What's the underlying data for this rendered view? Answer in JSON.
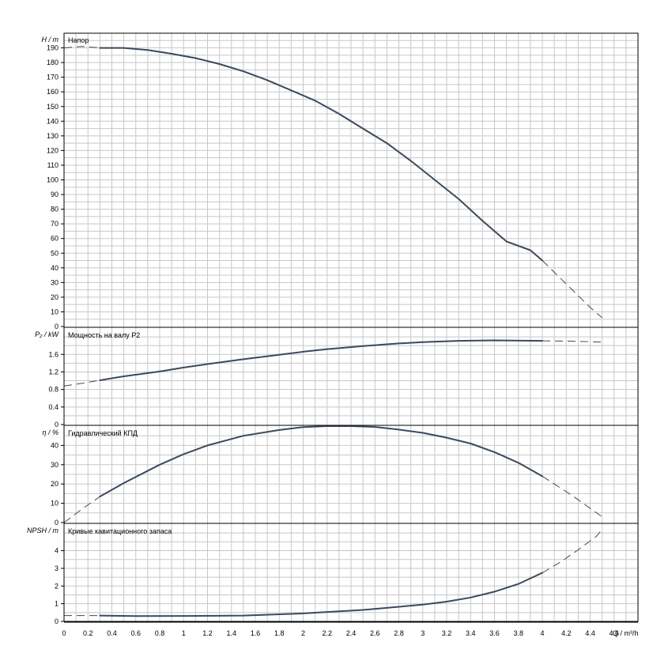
{
  "chart_data": {
    "type": "line",
    "x_axis": {
      "label": "Q / m³/h",
      "range": [
        0,
        4.8
      ],
      "ticks": [
        0,
        0.2,
        0.4,
        0.6,
        0.8,
        1,
        1.2,
        1.4,
        1.6,
        1.8,
        2,
        2.2,
        2.4,
        2.6,
        2.8,
        3,
        3.2,
        3.4,
        3.6,
        3.8,
        4,
        4.2,
        4.4,
        4.6
      ]
    },
    "grid": true,
    "panels": [
      {
        "id": "head",
        "title": "Напор",
        "ylabel": "H / m",
        "ylim": [
          0,
          200
        ],
        "yticks": [
          0,
          10,
          20,
          30,
          40,
          50,
          60,
          70,
          80,
          90,
          100,
          110,
          120,
          130,
          140,
          150,
          160,
          170,
          180,
          190
        ],
        "solid": {
          "x": [
            0.3,
            0.5,
            0.7,
            0.9,
            1.1,
            1.3,
            1.5,
            1.7,
            1.9,
            2.1,
            2.3,
            2.5,
            2.7,
            2.9,
            3.1,
            3.3,
            3.5,
            3.7,
            3.9,
            4.0
          ],
          "y": [
            190,
            190,
            188.5,
            186,
            183,
            179,
            174,
            168,
            161,
            154,
            145,
            135,
            125,
            113,
            100,
            87,
            72,
            58,
            52,
            45
          ]
        },
        "dashed": [
          {
            "x": [
              0,
              0.15,
              0.3
            ],
            "y": [
              190,
              191,
              190
            ]
          },
          {
            "x": [
              4.0,
              4.1,
              4.2,
              4.3,
              4.4,
              4.5
            ],
            "y": [
              45,
              37,
              29,
              21,
              13,
              6
            ]
          }
        ]
      },
      {
        "id": "power",
        "title": "Мощность на валу P2",
        "ylabel": "P₂ / kW",
        "ylim": [
          0,
          2.2
        ],
        "yticks": [
          0,
          0.4,
          0.8,
          1.2,
          1.6
        ],
        "solid": {
          "x": [
            0.3,
            0.5,
            0.8,
            1.0,
            1.2,
            1.5,
            1.8,
            2.0,
            2.2,
            2.5,
            2.8,
            3.0,
            3.3,
            3.6,
            4.0
          ],
          "y": [
            1.01,
            1.1,
            1.21,
            1.3,
            1.38,
            1.49,
            1.59,
            1.66,
            1.72,
            1.79,
            1.85,
            1.88,
            1.91,
            1.92,
            1.91
          ]
        },
        "dashed": [
          {
            "x": [
              0,
              0.15,
              0.3
            ],
            "y": [
              0.88,
              0.94,
              1.01
            ]
          },
          {
            "x": [
              4.0,
              4.25,
              4.5
            ],
            "y": [
              1.91,
              1.9,
              1.88
            ]
          }
        ]
      },
      {
        "id": "efficiency",
        "title": "Гидравлический КПД",
        "ylabel": "η / %",
        "ylim": [
          0,
          50
        ],
        "yticks": [
          0,
          10,
          20,
          30,
          40
        ],
        "solid": {
          "x": [
            0.3,
            0.5,
            0.8,
            1.0,
            1.2,
            1.5,
            1.8,
            2.0,
            2.2,
            2.4,
            2.6,
            2.8,
            3.0,
            3.2,
            3.4,
            3.6,
            3.8,
            4.0
          ],
          "y": [
            13.5,
            20.5,
            30,
            35.5,
            40,
            45,
            48,
            49.5,
            50,
            50,
            49.6,
            48.2,
            46.5,
            44,
            41,
            36.5,
            31,
            24
          ]
        },
        "dashed": [
          {
            "x": [
              0,
              0.15,
              0.3
            ],
            "y": [
              0,
              7,
              13.5
            ]
          },
          {
            "x": [
              4.0,
              4.25,
              4.5
            ],
            "y": [
              24,
              14,
              3
            ]
          }
        ]
      },
      {
        "id": "npsh",
        "title": "Кривые кавитационного запаса",
        "ylabel": "NPSH / m",
        "ylim": [
          0,
          5.5
        ],
        "yticks": [
          0,
          1,
          2,
          3,
          4
        ],
        "solid": {
          "x": [
            0.3,
            0.6,
            1.0,
            1.5,
            2.0,
            2.5,
            3.0,
            3.2,
            3.4,
            3.6,
            3.8,
            4.0
          ],
          "y": [
            0.33,
            0.3,
            0.31,
            0.33,
            0.45,
            0.65,
            0.95,
            1.12,
            1.35,
            1.68,
            2.12,
            2.75
          ]
        },
        "dashed": [
          {
            "x": [
              0,
              0.15,
              0.3
            ],
            "y": [
              0.33,
              0.33,
              0.33
            ]
          },
          {
            "x": [
              4.0,
              4.15,
              4.3,
              4.45,
              4.5
            ],
            "y": [
              2.75,
              3.35,
              4.05,
              4.8,
              5.2
            ]
          }
        ]
      }
    ]
  }
}
